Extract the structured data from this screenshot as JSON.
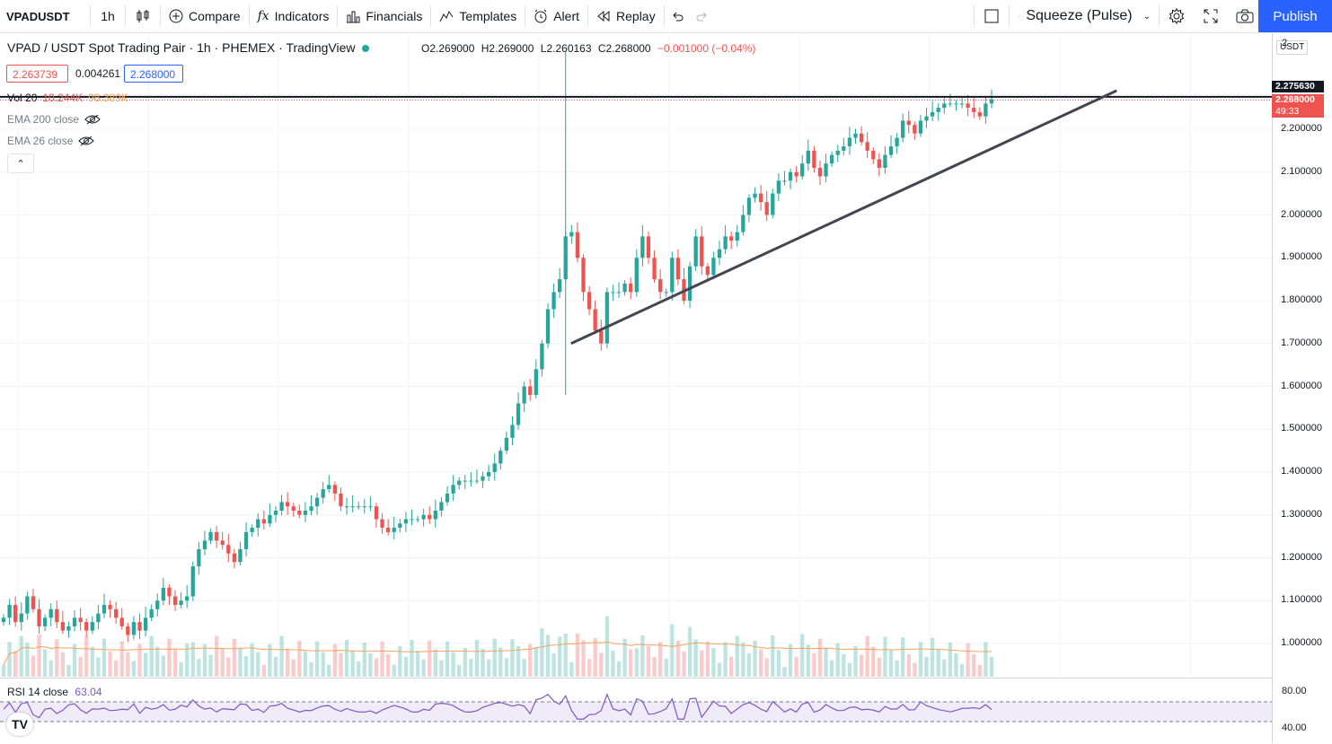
{
  "toolbar": {
    "symbol": "VPADUSDT",
    "interval": "1h",
    "compare": "Compare",
    "indicators": "Indicators",
    "financials": "Financials",
    "templates": "Templates",
    "alert": "Alert",
    "replay": "Replay",
    "layout_name": "Squeeze (Pulse)",
    "publish": "Publish"
  },
  "legend": {
    "title": "VPAD / USDT Spot Trading Pair · 1h · PHEMEX · TradingView",
    "open": "O2.269000",
    "high": "H2.269000",
    "low": "L2.260163",
    "close": "C2.268000",
    "change": "−0.001000 (−0.04%)",
    "bid": "2.263739",
    "spread": "0.004261",
    "ask": "2.268000"
  },
  "indicators": {
    "vol": "Vol 20",
    "vol_value1": "10.244K",
    "vol_value2": "98.389K",
    "ema200": "EMA 200 close",
    "ema26": "EMA 26 close",
    "rsi": "RSI 14 close",
    "rsi_value": "63.04"
  },
  "price_axis": {
    "currency": "USDT",
    "top_partial": "2",
    "labels": [
      "2.200000",
      "2.100000",
      "2.000000",
      "1.900000",
      "1.800000",
      "1.700000",
      "1.600000",
      "1.500000",
      "1.400000",
      "1.300000",
      "1.200000",
      "1.100000",
      "1.000000"
    ],
    "line_price_tag": "2.275630",
    "last_price_tag": "2.268000",
    "countdown": "49:33",
    "rsi_labels": [
      "80.00",
      "40.00"
    ]
  },
  "colors": {
    "up": "#26a69a",
    "down": "#ef5350",
    "accent": "#2962ff",
    "rsi": "#7e57c2",
    "ema": "#f7a35c"
  },
  "chart_data": {
    "type": "candlestick",
    "ylim": [
      0.93,
      2.3
    ],
    "closes": [
      1.06,
      1.09,
      1.05,
      1.07,
      1.11,
      1.08,
      1.04,
      1.06,
      1.08,
      1.05,
      1.03,
      1.04,
      1.06,
      1.05,
      1.03,
      1.05,
      1.07,
      1.09,
      1.08,
      1.06,
      1.04,
      1.02,
      1.05,
      1.03,
      1.06,
      1.08,
      1.1,
      1.13,
      1.11,
      1.09,
      1.1,
      1.11,
      1.18,
      1.22,
      1.24,
      1.26,
      1.24,
      1.23,
      1.21,
      1.19,
      1.22,
      1.26,
      1.27,
      1.29,
      1.28,
      1.3,
      1.31,
      1.33,
      1.32,
      1.31,
      1.3,
      1.31,
      1.32,
      1.34,
      1.36,
      1.37,
      1.35,
      1.32,
      1.32,
      1.32,
      1.32,
      1.32,
      1.32,
      1.29,
      1.27,
      1.26,
      1.27,
      1.28,
      1.29,
      1.29,
      1.29,
      1.3,
      1.29,
      1.31,
      1.33,
      1.35,
      1.37,
      1.38,
      1.38,
      1.38,
      1.38,
      1.39,
      1.4,
      1.42,
      1.45,
      1.48,
      1.51,
      1.56,
      1.6,
      1.58,
      1.64,
      1.7,
      1.78,
      1.82,
      1.85,
      1.95,
      1.96,
      1.9,
      1.82,
      1.78,
      1.73,
      1.7,
      1.82,
      1.82,
      1.82,
      1.84,
      1.82,
      1.9,
      1.95,
      1.9,
      1.85,
      1.82,
      1.82,
      1.9,
      1.85,
      1.8,
      1.88,
      1.95,
      1.88,
      1.86,
      1.9,
      1.92,
      1.95,
      1.94,
      1.96,
      2.0,
      2.04,
      2.05,
      2.03,
      2.0,
      2.05,
      2.08,
      2.08,
      2.1,
      2.09,
      2.12,
      2.15,
      2.11,
      2.09,
      2.12,
      2.14,
      2.15,
      2.16,
      2.18,
      2.19,
      2.17,
      2.15,
      2.13,
      2.11,
      2.14,
      2.16,
      2.18,
      2.22,
      2.21,
      2.19,
      2.22,
      2.23,
      2.24,
      2.25,
      2.26,
      2.26,
      2.26,
      2.26,
      2.25,
      2.24,
      2.23,
      2.26,
      2.27
    ],
    "annotations": {
      "horizontal_line": 2.27563,
      "trendline": [
        [
          0.449,
          1.7
        ],
        [
          0.878,
          2.29
        ]
      ]
    }
  }
}
